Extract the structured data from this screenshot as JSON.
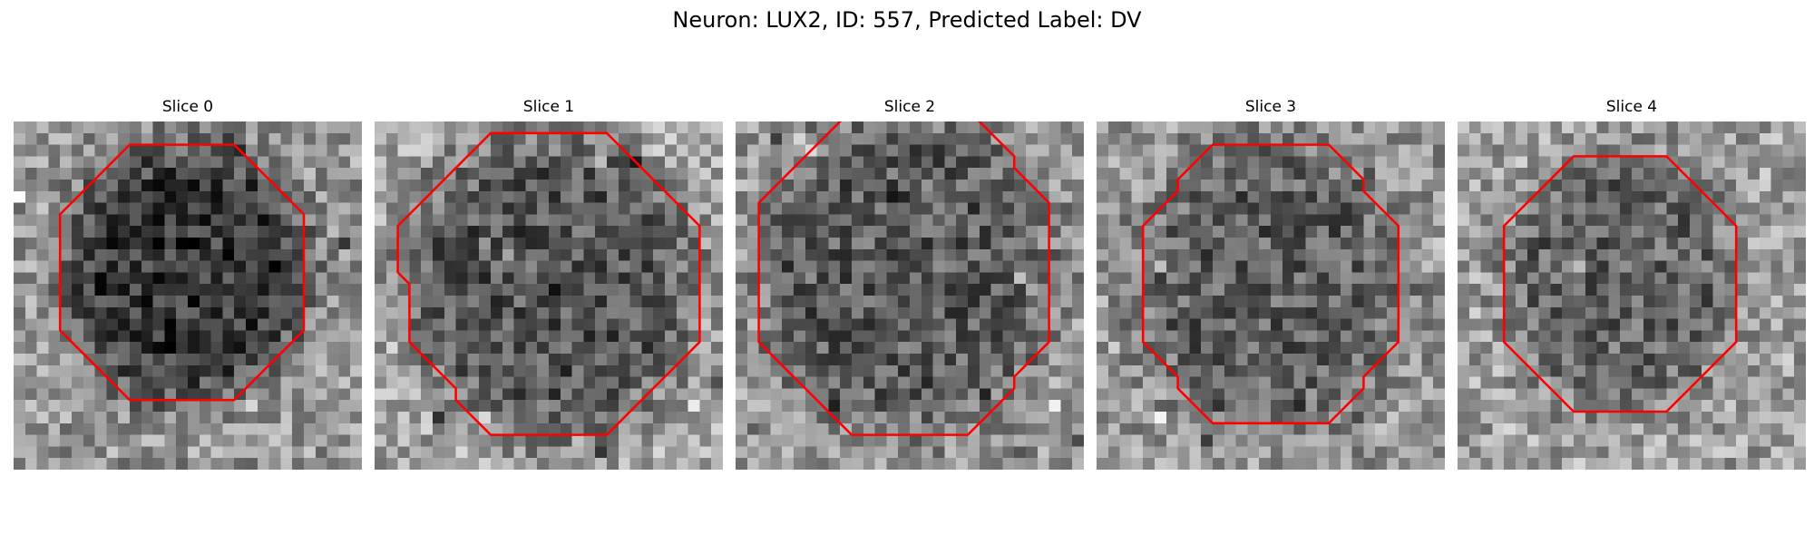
{
  "figure": {
    "suptitle": "Neuron: LUX2, ID: 557, Predicted Label: DV",
    "contour_color": "#ff0000",
    "colormap": "gray"
  },
  "panels": [
    {
      "title": "Slice 0"
    },
    {
      "title": "Slice 1"
    },
    {
      "title": "Slice 2"
    },
    {
      "title": "Slice 3"
    },
    {
      "title": "Slice 4"
    }
  ]
}
